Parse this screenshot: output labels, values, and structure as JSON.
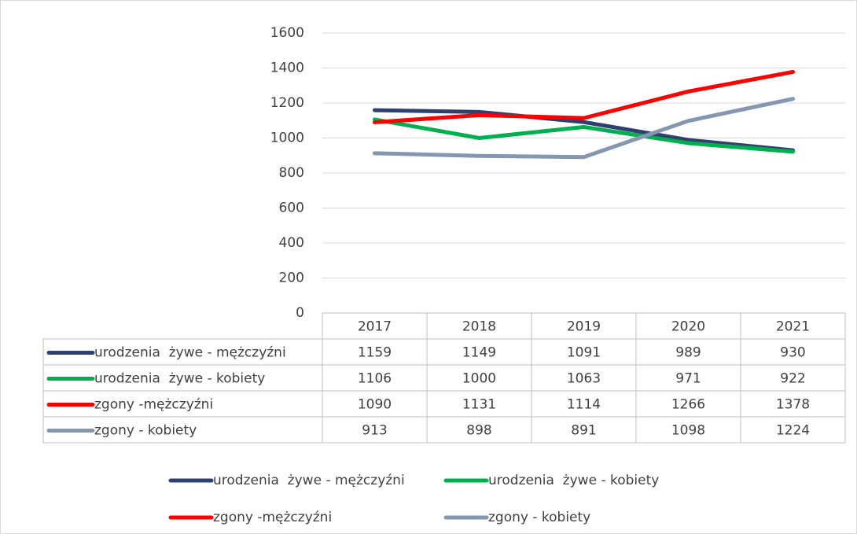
{
  "chart_data": {
    "type": "line",
    "categories": [
      "2017",
      "2018",
      "2019",
      "2020",
      "2021"
    ],
    "series": [
      {
        "name": "urodzenia  żywe - mężczyźni",
        "color": "#2f3f6e",
        "values": [
          1159,
          1149,
          1091,
          989,
          930
        ]
      },
      {
        "name": "urodzenia  żywe - kobiety",
        "color": "#00b050",
        "values": [
          1106,
          1000,
          1063,
          971,
          922
        ]
      },
      {
        "name": "zgony -mężczyźni",
        "color": "#ff0000",
        "values": [
          1090,
          1131,
          1114,
          1266,
          1378
        ]
      },
      {
        "name": "zgony - kobiety",
        "color": "#8497b0",
        "values": [
          913,
          898,
          891,
          1098,
          1224
        ]
      }
    ],
    "ylim": [
      0,
      1600
    ],
    "yticks": [
      0,
      200,
      400,
      600,
      800,
      1000,
      1200,
      1400,
      1600
    ],
    "grid": true,
    "legend": "bottom",
    "data_table": true
  }
}
